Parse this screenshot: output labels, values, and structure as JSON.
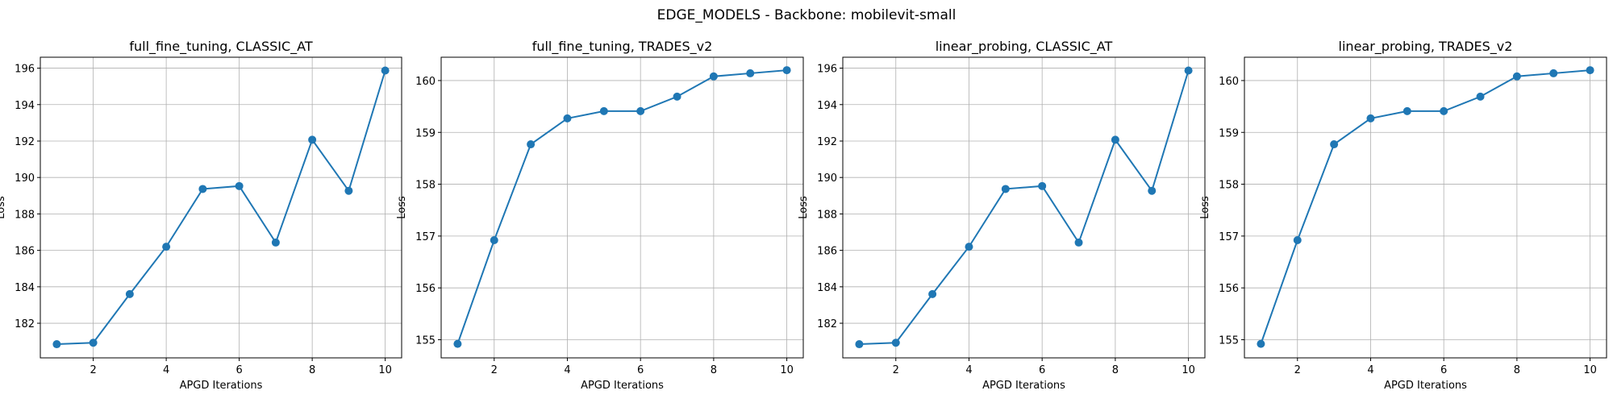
{
  "figure": {
    "suptitle": "EDGE_MODELS - Backbone: mobilevit-small"
  },
  "colors": {
    "line": "#1f77b4",
    "grid": "#b0b0b0",
    "axes": "#000000",
    "background": "#ffffff"
  },
  "chart_data": [
    {
      "type": "line",
      "title": "full_fine_tuning, CLASSIC_AT",
      "xlabel": "APGD Iterations",
      "ylabel": "Loss",
      "x": [
        1,
        2,
        3,
        4,
        5,
        6,
        7,
        8,
        9,
        10
      ],
      "series": [
        {
          "values": [
            180.85,
            180.93,
            183.6,
            186.2,
            189.37,
            189.53,
            186.43,
            192.07,
            189.27,
            195.87
          ]
        }
      ],
      "xlim": [
        0.55,
        10.45
      ],
      "ylim": [
        180.1,
        196.6
      ],
      "xticks": [
        2,
        4,
        6,
        8,
        10
      ],
      "yticks": [
        182,
        184,
        186,
        188,
        190,
        192,
        194,
        196
      ],
      "grid": true,
      "marker": "circle"
    },
    {
      "type": "line",
      "title": "full_fine_tuning, TRADES_v2",
      "xlabel": "APGD Iterations",
      "ylabel": "Loss",
      "x": [
        1,
        2,
        3,
        4,
        5,
        6,
        7,
        8,
        9,
        10
      ],
      "series": [
        {
          "values": [
            154.92,
            156.92,
            158.77,
            159.27,
            159.41,
            159.41,
            159.69,
            160.08,
            160.14,
            160.2
          ]
        }
      ],
      "xlim": [
        0.55,
        10.45
      ],
      "ylim": [
        154.65,
        160.45
      ],
      "xticks": [
        2,
        4,
        6,
        8,
        10
      ],
      "yticks": [
        155,
        156,
        157,
        158,
        159,
        160
      ],
      "grid": true,
      "marker": "circle"
    },
    {
      "type": "line",
      "title": "linear_probing, CLASSIC_AT",
      "xlabel": "APGD Iterations",
      "ylabel": "Loss",
      "x": [
        1,
        2,
        3,
        4,
        5,
        6,
        7,
        8,
        9,
        10
      ],
      "series": [
        {
          "values": [
            180.85,
            180.93,
            183.6,
            186.2,
            189.37,
            189.53,
            186.43,
            192.07,
            189.27,
            195.87
          ]
        }
      ],
      "xlim": [
        0.55,
        10.45
      ],
      "ylim": [
        180.1,
        196.6
      ],
      "xticks": [
        2,
        4,
        6,
        8,
        10
      ],
      "yticks": [
        182,
        184,
        186,
        188,
        190,
        192,
        194,
        196
      ],
      "grid": true,
      "marker": "circle"
    },
    {
      "type": "line",
      "title": "linear_probing, TRADES_v2",
      "xlabel": "APGD Iterations",
      "ylabel": "Loss",
      "x": [
        1,
        2,
        3,
        4,
        5,
        6,
        7,
        8,
        9,
        10
      ],
      "series": [
        {
          "values": [
            154.92,
            156.92,
            158.77,
            159.27,
            159.41,
            159.41,
            159.69,
            160.08,
            160.14,
            160.2
          ]
        }
      ],
      "xlim": [
        0.55,
        10.45
      ],
      "ylim": [
        154.65,
        160.45
      ],
      "xticks": [
        2,
        4,
        6,
        8,
        10
      ],
      "yticks": [
        155,
        156,
        157,
        158,
        159,
        160
      ],
      "grid": true,
      "marker": "circle"
    }
  ]
}
